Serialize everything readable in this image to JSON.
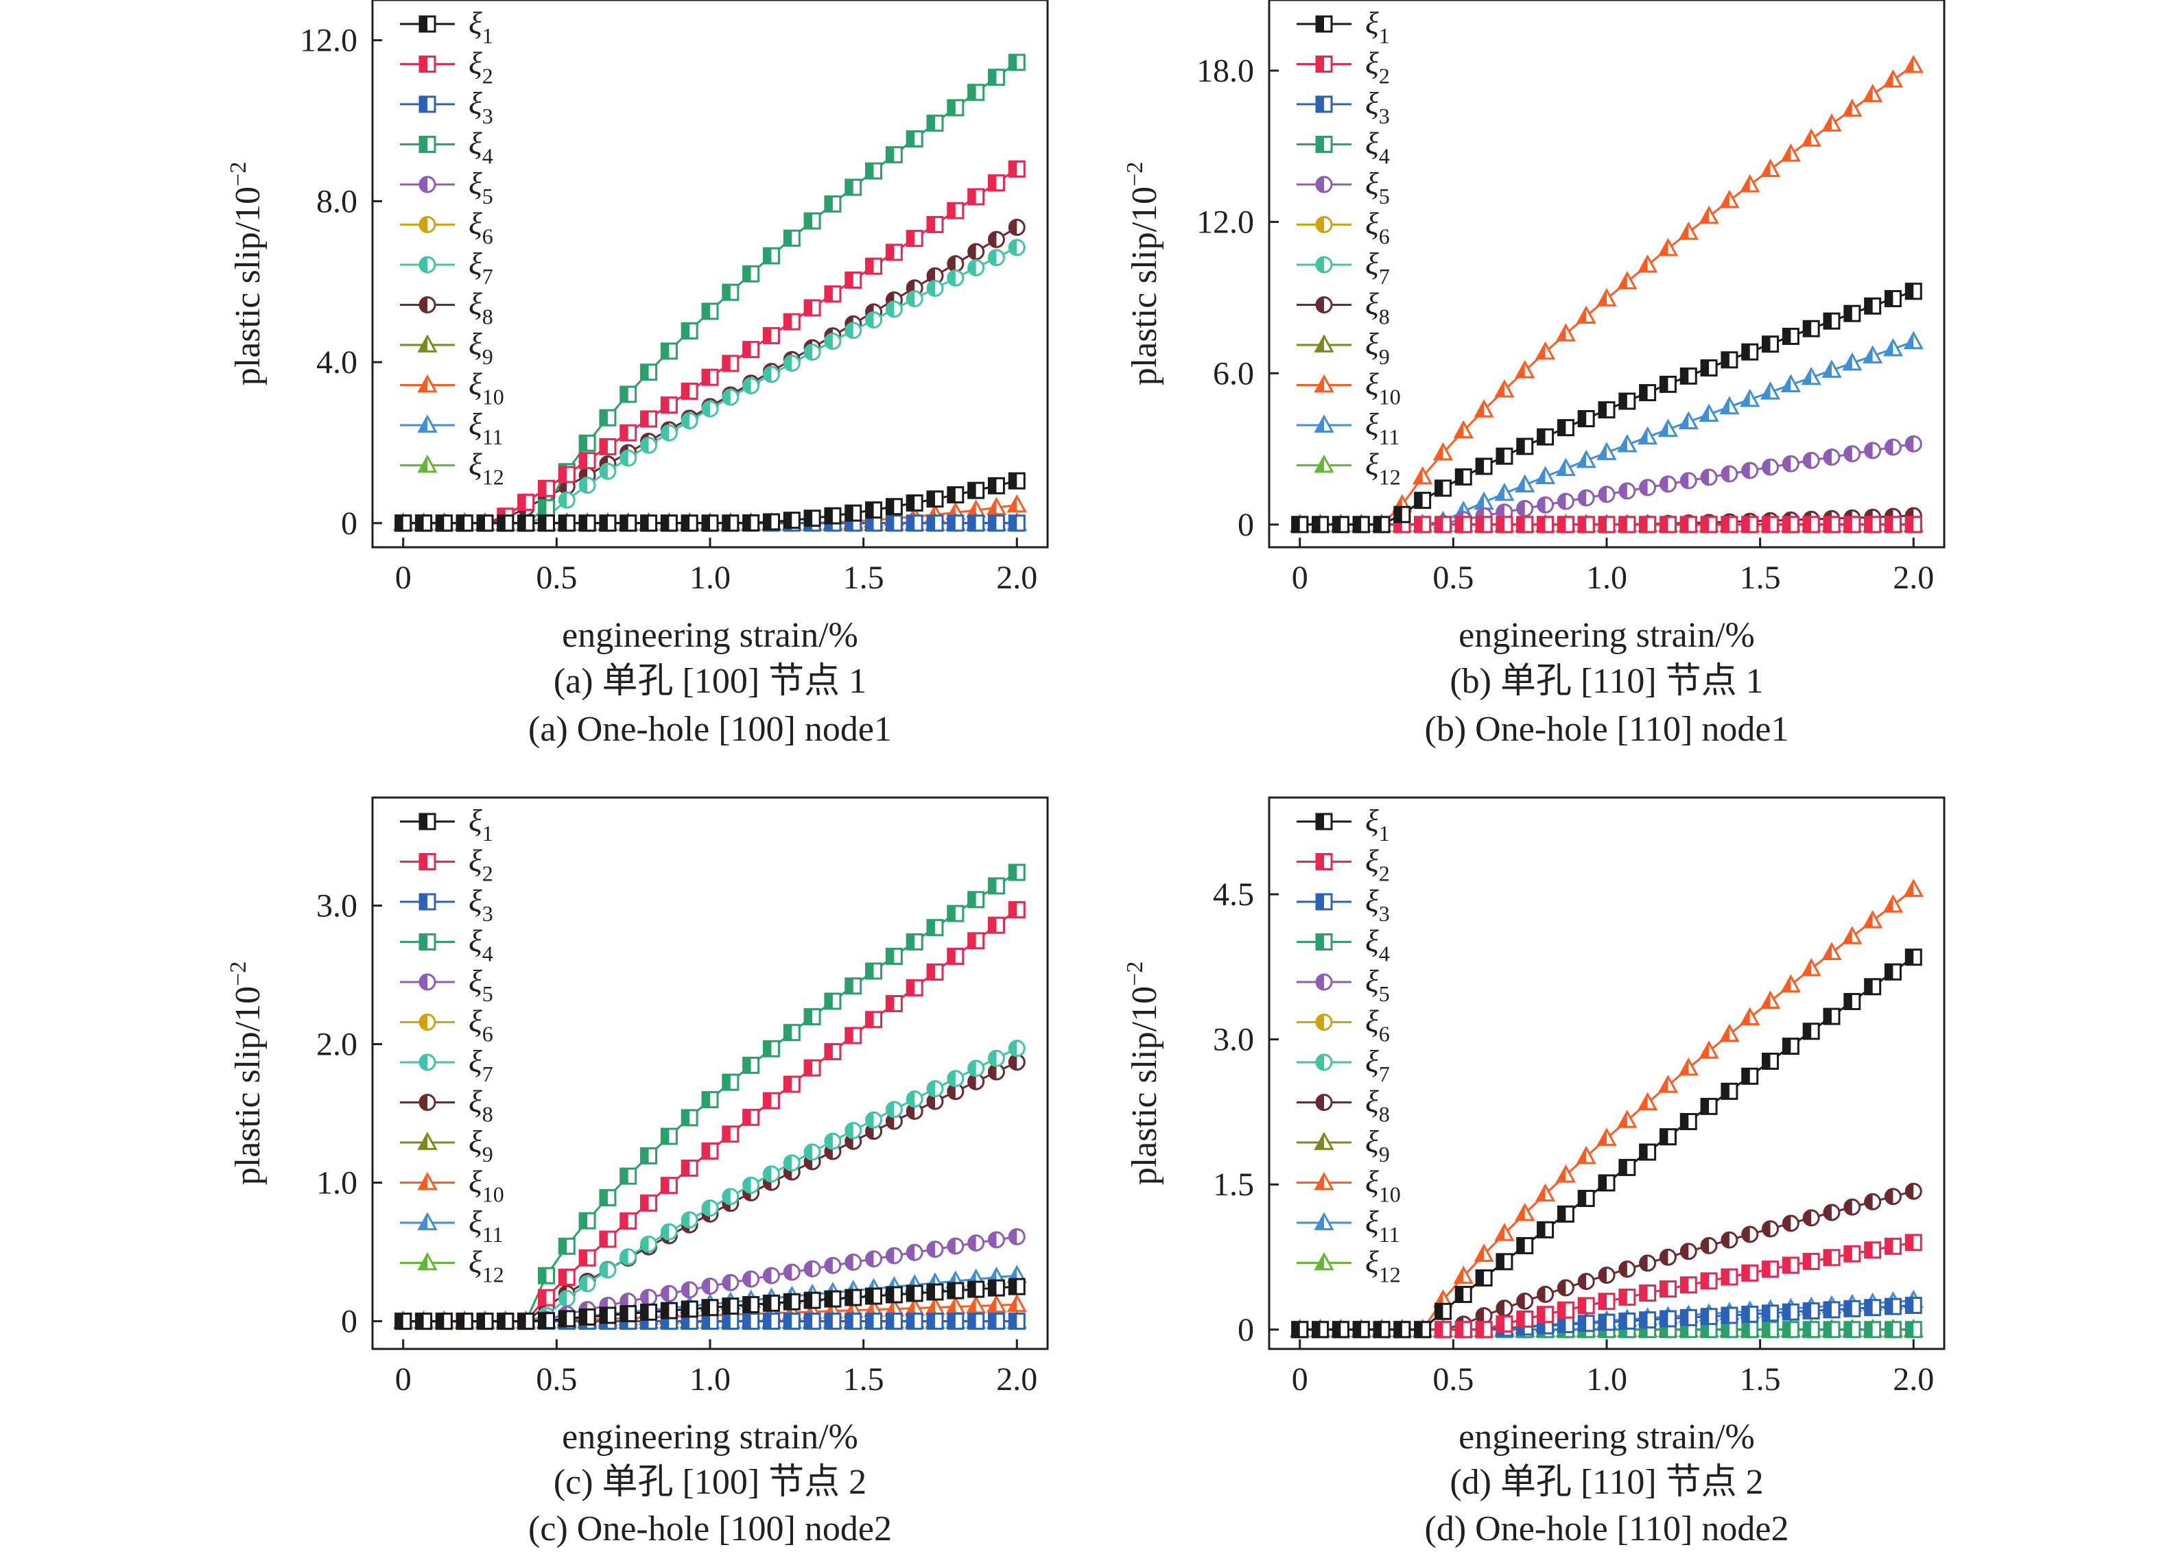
{
  "figure": {
    "legend_symbol_prefix": "ξ",
    "series_styles": [
      {
        "name": "ξ1",
        "color": "#1a1a1a",
        "marker": "square"
      },
      {
        "name": "ξ2",
        "color": "#e8264f",
        "marker": "square"
      },
      {
        "name": "ξ3",
        "color": "#2b62b8",
        "marker": "square"
      },
      {
        "name": "ξ4",
        "color": "#2aa06a",
        "marker": "square"
      },
      {
        "name": "ξ5",
        "color": "#8e5bb5",
        "marker": "circle"
      },
      {
        "name": "ξ6",
        "color": "#d4a20f",
        "marker": "circle"
      },
      {
        "name": "ξ7",
        "color": "#3fc4a6",
        "marker": "circle"
      },
      {
        "name": "ξ8",
        "color": "#6b2a2f",
        "marker": "circle"
      },
      {
        "name": "ξ9",
        "color": "#7a8a1c",
        "marker": "triangle"
      },
      {
        "name": "ξ10",
        "color": "#ff5a1f",
        "marker": "triangle"
      },
      {
        "name": "ξ11",
        "color": "#3f8fd6",
        "marker": "triangle"
      },
      {
        "name": "ξ12",
        "color": "#62b832",
        "marker": "triangle"
      }
    ]
  },
  "chart_data": [
    {
      "type": "line",
      "caption_cn": "(a) 单孔 [100] 节点 1",
      "caption_en": "(a) One-hole [100] node1",
      "xlabel": "engineering strain/%",
      "ylabel": "plastic slip/10",
      "ylabel_exp": "−2",
      "xlim": [
        -0.1,
        2.1
      ],
      "ylim": [
        -0.6,
        13.0
      ],
      "xticks": [
        "0",
        "0.5",
        "1.0",
        "1.5",
        "2.0"
      ],
      "xtick_values": [
        0,
        0.5,
        1.0,
        1.5,
        2.0
      ],
      "yticks": [
        "0",
        "4.0",
        "8.0",
        "12.0"
      ],
      "ytick_values": [
        0,
        4,
        8,
        12
      ],
      "series": [
        {
          "name": "ξ1",
          "onset": 1.1,
          "end": 1.05,
          "peak": 0.5,
          "curve": 1.6
        },
        {
          "name": "ξ2",
          "onset": 0.3,
          "end": 8.8,
          "peak": 0.5,
          "curve": 1.0
        },
        {
          "name": "ξ3",
          "onset": 2.0,
          "end": 0.0,
          "peak": 0.5,
          "curve": 1.0
        },
        {
          "name": "ξ4",
          "onset": 0.45,
          "end": 11.45,
          "peak": 0.85,
          "curve": 0.75
        },
        {
          "name": "ξ5",
          "onset": 2.0,
          "end": 0.0,
          "peak": 0.5,
          "curve": 1.0
        },
        {
          "name": "ξ6",
          "onset": 2.0,
          "end": 0.0,
          "peak": 0.5,
          "curve": 1.0
        },
        {
          "name": "ξ7",
          "onset": 0.45,
          "end": 6.85,
          "peak": 0.15,
          "curve": 0.85
        },
        {
          "name": "ξ8",
          "onset": 0.3,
          "end": 7.35,
          "peak": 0.2,
          "curve": 1.05
        },
        {
          "name": "ξ9",
          "onset": 2.0,
          "end": 0.0,
          "peak": 0.5,
          "curve": 1.0
        },
        {
          "name": "ξ10",
          "onset": 1.3,
          "end": 0.45,
          "peak": 0.5,
          "curve": 1.6
        },
        {
          "name": "ξ11",
          "onset": 2.0,
          "end": 0.0,
          "peak": 0.5,
          "curve": 1.0
        },
        {
          "name": "ξ12",
          "onset": 2.0,
          "end": 0.0,
          "peak": 0.5,
          "curve": 1.0
        }
      ]
    },
    {
      "type": "line",
      "caption_cn": "(b) 单孔 [110] 节点 1",
      "caption_en": "(b) One-hole [110] node1",
      "xlabel": "engineering strain/%",
      "ylabel": "plastic slip/10",
      "ylabel_exp": "−2",
      "xlim": [
        -0.1,
        2.1
      ],
      "ylim": [
        -0.9,
        20.8
      ],
      "xticks": [
        "0",
        "0.5",
        "1.0",
        "1.5",
        "2.0"
      ],
      "xtick_values": [
        0,
        0.5,
        1.0,
        1.5,
        2.0
      ],
      "yticks": [
        "0",
        "6.0",
        "12.0",
        "18.0"
      ],
      "ytick_values": [
        0,
        6,
        12,
        18
      ],
      "series": [
        {
          "name": "ξ1",
          "onset": 0.3,
          "end": 9.25,
          "peak": 0.5,
          "curve": 0.8
        },
        {
          "name": "ξ2",
          "onset": 2.0,
          "end": 0.0,
          "peak": 0.5,
          "curve": 1.0
        },
        {
          "name": "ξ3",
          "onset": 2.0,
          "end": 0.0,
          "peak": 0.5,
          "curve": 1.0
        },
        {
          "name": "ξ4",
          "onset": 2.0,
          "end": 0.0,
          "peak": 0.5,
          "curve": 1.0
        },
        {
          "name": "ξ5",
          "onset": 0.45,
          "end": 3.2,
          "peak": 0.5,
          "curve": 0.95
        },
        {
          "name": "ξ6",
          "onset": 2.0,
          "end": 0.0,
          "peak": 0.5,
          "curve": 1.0
        },
        {
          "name": "ξ7",
          "onset": 2.0,
          "end": 0.0,
          "peak": 0.5,
          "curve": 1.0
        },
        {
          "name": "ξ8",
          "onset": 1.0,
          "end": 0.35,
          "peak": 0.5,
          "curve": 1.3
        },
        {
          "name": "ξ9",
          "onset": 2.0,
          "end": 0.0,
          "peak": 0.5,
          "curve": 1.0
        },
        {
          "name": "ξ10",
          "onset": 0.3,
          "end": 18.2,
          "peak": 0.5,
          "curve": 0.8
        },
        {
          "name": "ξ11",
          "onset": 0.45,
          "end": 7.25,
          "peak": 0.5,
          "curve": 0.9
        },
        {
          "name": "ξ12",
          "onset": 2.0,
          "end": 0.0,
          "peak": 0.5,
          "curve": 1.0
        }
      ]
    },
    {
      "type": "line",
      "caption_cn": "(c) 单孔 [100] 节点 2",
      "caption_en": "(c) One-hole [100] node2",
      "xlabel": "engineering strain/%",
      "ylabel": "plastic slip/10",
      "ylabel_exp": "−2",
      "xlim": [
        -0.1,
        2.1
      ],
      "ylim": [
        -0.2,
        3.78
      ],
      "xticks": [
        "0",
        "0.5",
        "1.0",
        "1.5",
        "2.0"
      ],
      "xtick_values": [
        0,
        0.5,
        1.0,
        1.5,
        2.0
      ],
      "yticks": [
        "0",
        "1.0",
        "2.0",
        "3.0"
      ],
      "ytick_values": [
        0,
        1,
        2,
        3
      ],
      "series": [
        {
          "name": "ξ1",
          "onset": 0.45,
          "end": 0.25,
          "peak": 0.5,
          "curve": 0.9
        },
        {
          "name": "ξ2",
          "onset": 0.4,
          "end": 2.97,
          "peak": 0.5,
          "curve": 0.9
        },
        {
          "name": "ξ3",
          "onset": 2.0,
          "end": 0.0,
          "peak": 0.5,
          "curve": 1.0
        },
        {
          "name": "ξ4",
          "onset": 0.4,
          "end": 3.24,
          "peak": 0.5,
          "curve": 0.72
        },
        {
          "name": "ξ5",
          "onset": 0.45,
          "end": 0.61,
          "peak": 0.5,
          "curve": 0.85
        },
        {
          "name": "ξ6",
          "onset": 2.0,
          "end": 0.0,
          "peak": 0.5,
          "curve": 1.0
        },
        {
          "name": "ξ7",
          "onset": 0.45,
          "end": 1.97,
          "peak": 0.5,
          "curve": 0.85
        },
        {
          "name": "ξ8",
          "onset": 0.4,
          "end": 1.87,
          "peak": 0.5,
          "curve": 0.9
        },
        {
          "name": "ξ9",
          "onset": 2.0,
          "end": 0.0,
          "peak": 0.5,
          "curve": 1.0
        },
        {
          "name": "ξ10",
          "onset": 0.45,
          "end": 0.12,
          "peak": 0.5,
          "curve": 1.0
        },
        {
          "name": "ξ11",
          "onset": 0.45,
          "end": 0.33,
          "peak": 0.5,
          "curve": 0.95
        },
        {
          "name": "ξ12",
          "onset": 2.0,
          "end": 0.0,
          "peak": 0.5,
          "curve": 1.0
        }
      ]
    },
    {
      "type": "line",
      "caption_cn": "(d) 单孔 [110] 节点 2",
      "caption_en": "(d) One-hole [110] node2",
      "xlabel": "engineering strain/%",
      "ylabel": "plastic slip/10",
      "ylabel_exp": "−2",
      "xlim": [
        -0.1,
        2.1
      ],
      "ylim": [
        -0.2,
        5.5
      ],
      "xticks": [
        "0",
        "0.5",
        "1.0",
        "1.5",
        "2.0"
      ],
      "xtick_values": [
        0,
        0.5,
        1.0,
        1.5,
        2.0
      ],
      "yticks": [
        "0",
        "1.5",
        "3.0",
        "4.5"
      ],
      "ytick_values": [
        0,
        1.5,
        3.0,
        4.5
      ],
      "series": [
        {
          "name": "ξ1",
          "onset": 0.4,
          "end": 3.85,
          "peak": 0.5,
          "curve": 0.95
        },
        {
          "name": "ξ2",
          "onset": 0.6,
          "end": 0.9,
          "peak": 0.5,
          "curve": 0.9
        },
        {
          "name": "ξ3",
          "onset": 0.6,
          "end": 0.25,
          "peak": 0.5,
          "curve": 0.95
        },
        {
          "name": "ξ4",
          "onset": 2.0,
          "end": 0.0,
          "peak": 0.5,
          "curve": 1.0
        },
        {
          "name": "ξ5",
          "onset": 2.0,
          "end": 0.0,
          "peak": 0.5,
          "curve": 1.0
        },
        {
          "name": "ξ6",
          "onset": 2.0,
          "end": 0.0,
          "peak": 0.5,
          "curve": 1.0
        },
        {
          "name": "ξ7",
          "onset": 2.0,
          "end": 0.0,
          "peak": 0.5,
          "curve": 1.0
        },
        {
          "name": "ξ8",
          "onset": 0.5,
          "end": 1.43,
          "peak": 0.5,
          "curve": 0.85
        },
        {
          "name": "ξ9",
          "onset": 2.0,
          "end": 0.0,
          "peak": 0.5,
          "curve": 1.0
        },
        {
          "name": "ξ10",
          "onset": 0.4,
          "end": 4.55,
          "peak": 0.5,
          "curve": 0.85
        },
        {
          "name": "ξ11",
          "onset": 0.6,
          "end": 0.3,
          "peak": 0.5,
          "curve": 0.95
        },
        {
          "name": "ξ12",
          "onset": 2.0,
          "end": 0.0,
          "peak": 0.5,
          "curve": 1.0
        }
      ]
    }
  ]
}
